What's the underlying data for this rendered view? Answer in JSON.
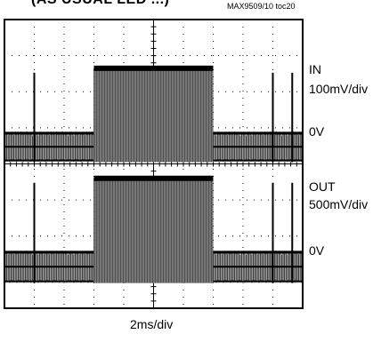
{
  "header": {
    "title": "(AS USUAL LED ...)",
    "figure_id": "MAX9509/10 toc20"
  },
  "channels": [
    {
      "name": "IN",
      "scale": "100mV/div",
      "zero": "0V"
    },
    {
      "name": "OUT",
      "scale": "500mV/div",
      "zero": "0V"
    }
  ],
  "xaxis": {
    "label": "2ms/div"
  },
  "chart_data": {
    "type": "line",
    "title": "",
    "xlabel": "2ms/div",
    "ylabel": "",
    "grid": true,
    "x_divisions": 10,
    "y_divisions": 8,
    "series": [
      {
        "name": "IN",
        "scale": "100mV/div",
        "burst_start_div": 3.0,
        "burst_end_div": 7.0,
        "burst_top_div": 1.35,
        "baseline_top_div": 3.1,
        "baseline_bottom_div": 3.95,
        "spike_positions_div": [
          1.0,
          9.0,
          9.65
        ]
      },
      {
        "name": "OUT",
        "scale": "500mV/div",
        "burst_start_div": 3.0,
        "burst_end_div": 7.0,
        "burst_top_div": 4.4,
        "baseline_top_div": 6.4,
        "baseline_bottom_div": 7.3,
        "spike_positions_div": [
          1.0,
          9.0,
          9.65
        ]
      }
    ]
  }
}
